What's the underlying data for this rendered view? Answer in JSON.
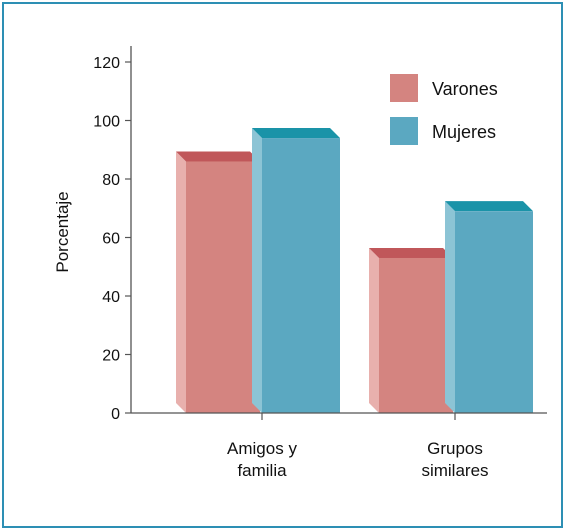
{
  "chart_data": {
    "type": "bar",
    "categories": [
      "Amigos y familia",
      "Grupos similares"
    ],
    "category_lines": [
      [
        "Amigos y",
        "familia"
      ],
      [
        "Grupos",
        "similares"
      ]
    ],
    "series": [
      {
        "name": "Varones",
        "values": [
          86,
          53
        ],
        "color": "#d48480"
      },
      {
        "name": "Mujeres",
        "values": [
          94,
          69
        ],
        "color": "#5ba8c1"
      }
    ],
    "title": "",
    "xlabel": "",
    "ylabel": "Porcentaje",
    "ylim": [
      0,
      120
    ],
    "yticks": [
      0,
      20,
      40,
      60,
      80,
      100,
      120
    ],
    "legend_position": "top-right",
    "grid": false,
    "border_color": "#2d8fb4",
    "bar_top_colors": {
      "Varones": "#c0575a",
      "Mujeres": "#1a93a8"
    },
    "bar_side_colors": {
      "Varones": "#e8b0ad",
      "Mujeres": "#8cc4d5"
    }
  }
}
